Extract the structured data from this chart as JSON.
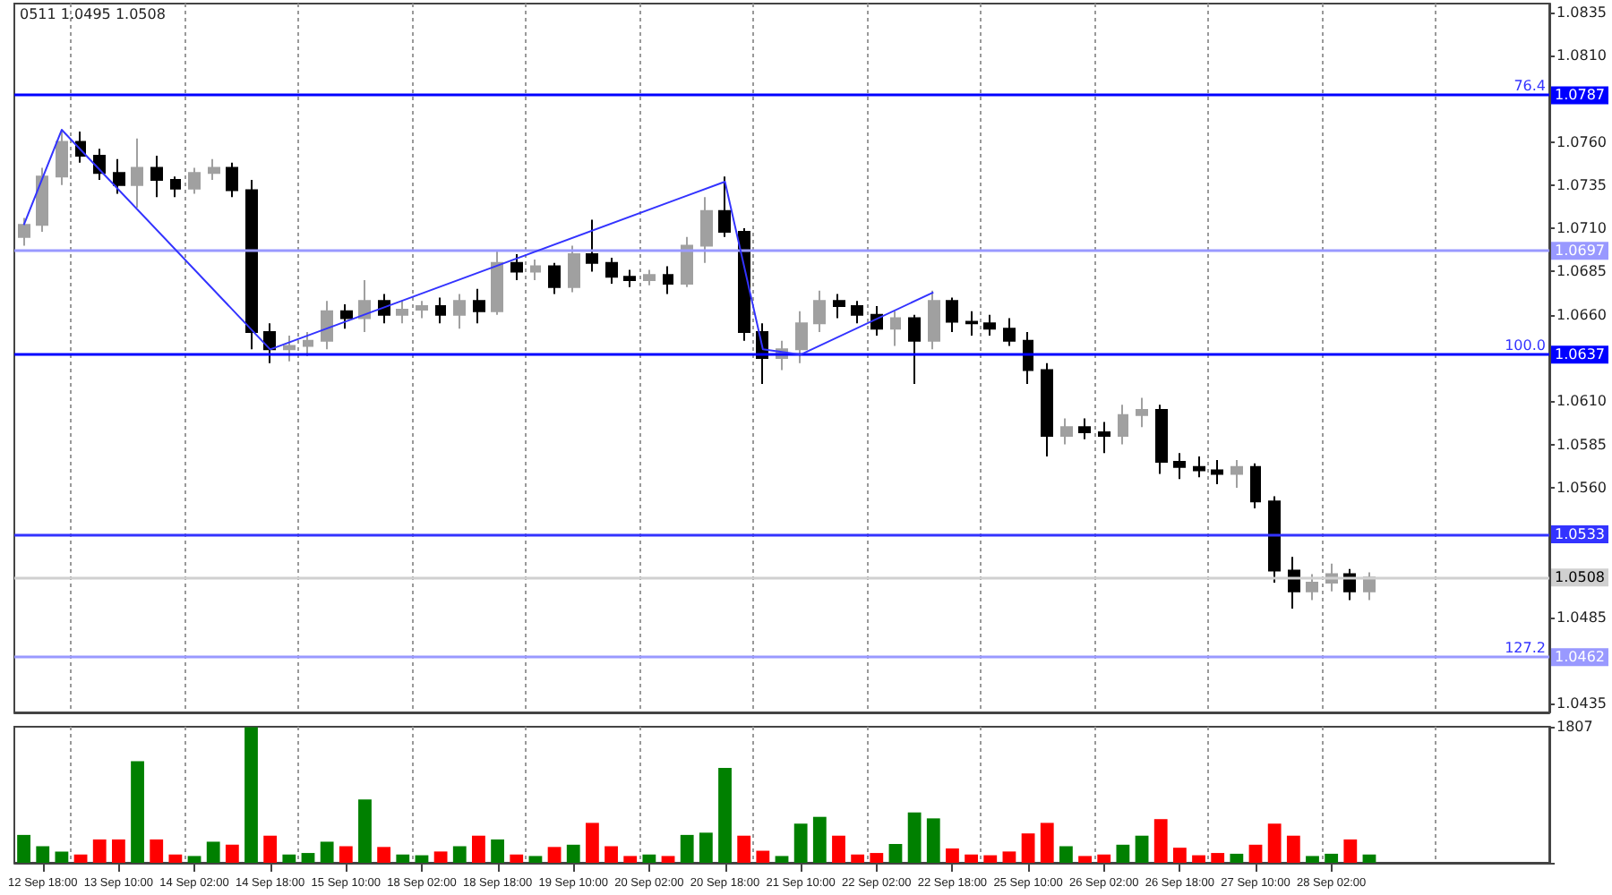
{
  "chart_data": [
    {
      "type": "candlestick",
      "annotations": [
        "0511 1.0495 1.0508",
        {
          "text": "76.4",
          "y": 1.0787
        },
        {
          "text": "100.0",
          "y": 1.0637
        },
        {
          "text": "127.2",
          "y": 1.0462
        }
      ],
      "categories": [
        null,
        null,
        null,
        null,
        null,
        null,
        null,
        null,
        null,
        null,
        null,
        null,
        null,
        null,
        null,
        null,
        null,
        null,
        null,
        null,
        null,
        null,
        null,
        null,
        null,
        null,
        null,
        null,
        null,
        null,
        null,
        null,
        null,
        null,
        null,
        null,
        null,
        null,
        null,
        null,
        null,
        null,
        null,
        null,
        null,
        null,
        null,
        null,
        null,
        null,
        null,
        null,
        null,
        null,
        null,
        null,
        null,
        null,
        null,
        null,
        null,
        null,
        null,
        null,
        null,
        null,
        null,
        null,
        null,
        null,
        null,
        null,
        null,
        null,
        null,
        null,
        null,
        null,
        null,
        null,
        null
      ],
      "ohlc": [
        [
          1.0705,
          1.0716,
          1.07,
          1.0712
        ],
        [
          1.0712,
          1.0745,
          1.0708,
          1.074
        ],
        [
          1.074,
          1.0767,
          1.0735,
          1.076
        ],
        [
          1.076,
          1.0766,
          1.0748,
          1.0752
        ],
        [
          1.0752,
          1.0756,
          1.0738,
          1.0742
        ],
        [
          1.0742,
          1.075,
          1.073,
          1.0735
        ],
        [
          1.0735,
          1.0762,
          1.0722,
          1.0745
        ],
        [
          1.0745,
          1.0752,
          1.0728,
          1.0738
        ],
        [
          1.0738,
          1.074,
          1.0728,
          1.0733
        ],
        [
          1.0733,
          1.0745,
          1.073,
          1.0742
        ],
        [
          1.0742,
          1.075,
          1.0738,
          1.0745
        ],
        [
          1.0745,
          1.0748,
          1.0728,
          1.0732
        ],
        [
          1.0732,
          1.0738,
          1.064,
          1.065
        ],
        [
          1.065,
          1.0655,
          1.0632,
          1.064
        ],
        [
          1.064,
          1.0648,
          1.0633,
          1.0642
        ],
        [
          1.0642,
          1.065,
          1.0636,
          1.0645
        ],
        [
          1.0645,
          1.0668,
          1.064,
          1.0662
        ],
        [
          1.0662,
          1.0666,
          1.0652,
          1.0658
        ],
        [
          1.0658,
          1.068,
          1.065,
          1.0668
        ],
        [
          1.0668,
          1.0672,
          1.0655,
          1.066
        ],
        [
          1.066,
          1.0668,
          1.0655,
          1.0663
        ],
        [
          1.0663,
          1.0668,
          1.0658,
          1.0665
        ],
        [
          1.0665,
          1.067,
          1.0655,
          1.066
        ],
        [
          1.066,
          1.0672,
          1.0652,
          1.0668
        ],
        [
          1.0668,
          1.0675,
          1.0655,
          1.0662
        ],
        [
          1.0662,
          1.0697,
          1.066,
          1.069
        ],
        [
          1.069,
          1.0695,
          1.068,
          1.0685
        ],
        [
          1.0685,
          1.0692,
          1.068,
          1.0688
        ],
        [
          1.0688,
          1.069,
          1.0672,
          1.0676
        ],
        [
          1.0676,
          1.07,
          1.0673,
          1.0695
        ],
        [
          1.0695,
          1.0715,
          1.0685,
          1.069
        ],
        [
          1.069,
          1.0693,
          1.0678,
          1.0682
        ],
        [
          1.0682,
          1.0686,
          1.0676,
          1.068
        ],
        [
          1.068,
          1.0686,
          1.0677,
          1.0683
        ],
        [
          1.0683,
          1.0688,
          1.0672,
          1.0678
        ],
        [
          1.0678,
          1.0705,
          1.0676,
          1.07
        ],
        [
          1.07,
          1.0728,
          1.069,
          1.072
        ],
        [
          1.072,
          1.074,
          1.0705,
          1.0708
        ],
        [
          1.0708,
          1.071,
          1.0645,
          1.065
        ],
        [
          1.065,
          1.0655,
          1.062,
          1.0635
        ],
        [
          1.0635,
          1.0645,
          1.0628,
          1.064
        ],
        [
          1.064,
          1.0662,
          1.0632,
          1.0655
        ],
        [
          1.0655,
          1.0674,
          1.065,
          1.0668
        ],
        [
          1.0668,
          1.0672,
          1.0658,
          1.0665
        ],
        [
          1.0665,
          1.0668,
          1.0655,
          1.066
        ],
        [
          1.066,
          1.0665,
          1.0648,
          1.0652
        ],
        [
          1.0652,
          1.0662,
          1.0642,
          1.0658
        ],
        [
          1.0658,
          1.066,
          1.062,
          1.0645
        ],
        [
          1.0645,
          1.0674,
          1.064,
          1.0668
        ],
        [
          1.0668,
          1.067,
          1.065,
          1.0656
        ],
        [
          1.0656,
          1.0662,
          1.0648,
          1.0655
        ],
        [
          1.0655,
          1.066,
          1.0648,
          1.0652
        ],
        [
          1.0652,
          1.0658,
          1.0642,
          1.0645
        ],
        [
          1.0645,
          1.065,
          1.062,
          1.0628
        ],
        [
          1.0628,
          1.0632,
          1.0578,
          1.059
        ],
        [
          1.059,
          1.06,
          1.0585,
          1.0595
        ],
        [
          1.0595,
          1.06,
          1.0588,
          1.0592
        ],
        [
          1.0592,
          1.0598,
          1.058,
          1.059
        ],
        [
          1.059,
          1.0608,
          1.0585,
          1.0602
        ],
        [
          1.0602,
          1.0612,
          1.0595,
          1.0605
        ],
        [
          1.0605,
          1.0608,
          1.0568,
          1.0575
        ],
        [
          1.0575,
          1.058,
          1.0565,
          1.0572
        ],
        [
          1.0572,
          1.0578,
          1.0566,
          1.057
        ],
        [
          1.057,
          1.0576,
          1.0562,
          1.0568
        ],
        [
          1.0568,
          1.0576,
          1.056,
          1.0572
        ],
        [
          1.0572,
          1.0574,
          1.0548,
          1.0552
        ],
        [
          1.0552,
          1.0555,
          1.0505,
          1.0512
        ],
        [
          1.0512,
          1.052,
          1.049,
          1.05
        ],
        [
          1.05,
          1.051,
          1.0495,
          1.0505
        ],
        [
          1.0505,
          1.0516,
          1.05,
          1.051
        ],
        [
          1.051,
          1.0513,
          1.0495,
          1.05
        ],
        [
          1.05,
          1.0511,
          1.0495,
          1.0508
        ],
        null,
        null,
        null,
        null,
        null,
        null,
        null,
        null,
        null
      ],
      "colors": [
        "#a0a0a0",
        "#a0a0a0",
        "#a0a0a0",
        "#000000",
        "#000000",
        "#000000",
        "#a0a0a0",
        "#000000",
        "#000000",
        "#a0a0a0",
        "#a0a0a0",
        "#000000",
        "#000000",
        "#000000",
        "#a0a0a0",
        "#a0a0a0",
        "#a0a0a0",
        "#000000",
        "#a0a0a0",
        "#000000",
        "#a0a0a0",
        "#a0a0a0",
        "#000000",
        "#a0a0a0",
        "#000000",
        "#a0a0a0",
        "#000000",
        "#a0a0a0",
        "#000000",
        "#a0a0a0",
        "#000000",
        "#000000",
        "#000000",
        "#a0a0a0",
        "#000000",
        "#a0a0a0",
        "#a0a0a0",
        "#000000",
        "#000000",
        "#000000",
        "#a0a0a0",
        "#a0a0a0",
        "#a0a0a0",
        "#000000",
        "#000000",
        "#000000",
        "#a0a0a0",
        "#000000",
        "#a0a0a0",
        "#000000",
        "#000000",
        "#000000",
        "#000000",
        "#000000",
        "#000000",
        "#a0a0a0",
        "#000000",
        "#000000",
        "#a0a0a0",
        "#a0a0a0",
        "#000000",
        "#000000",
        "#000000",
        "#000000",
        "#a0a0a0",
        "#000000",
        "#000000",
        "#000000",
        "#a0a0a0",
        "#a0a0a0",
        "#000000",
        "#a0a0a0",
        null,
        null,
        null,
        null,
        null,
        null,
        null,
        null,
        null
      ],
      "series": [
        {
          "type": "line",
          "color": "#3333ff",
          "values": [
            1.0712,
            null,
            1.0767,
            null,
            null,
            null,
            null,
            null,
            null,
            null,
            null,
            null,
            null,
            1.064,
            null,
            null,
            null,
            null,
            null,
            null,
            null,
            null,
            null,
            null,
            null,
            null,
            null,
            null,
            null,
            null,
            null,
            null,
            null,
            null,
            null,
            null,
            null,
            1.0737,
            null,
            1.064,
            null,
            1.0637,
            null,
            null,
            null,
            null,
            null,
            null,
            1.0673,
            null,
            null,
            null,
            null,
            null,
            null,
            null,
            null,
            null,
            null,
            null,
            null,
            null,
            null,
            null,
            null,
            null,
            null,
            null,
            null,
            null,
            null,
            null,
            null,
            null,
            null,
            null,
            null,
            null,
            null,
            null,
            null
          ]
        }
      ],
      "marker": "none",
      "ylim": [
        1.043,
        1.084
      ],
      "yticks": [
        1.0435,
        1.0485,
        {
          "value": 1.056,
          "label": "1.0560"
        },
        1.0585,
        {
          "value": 1.061,
          "label": "1.0610"
        },
        {
          "value": 1.066,
          "label": "1.0660"
        },
        1.0685,
        {
          "value": 1.071,
          "label": "1.0710"
        },
        1.0735,
        {
          "value": 1.076,
          "label": "1.0760"
        },
        {
          "value": 1.081,
          "label": "1.0810"
        },
        1.0835
      ],
      "ref_lines": [
        {
          "axis": "y",
          "value": 1.0787,
          "label": "1.0787",
          "color": "#0000ff"
        },
        {
          "axis": "y",
          "value": 1.0697,
          "label": "1.0697",
          "color": "#9999ff"
        },
        {
          "axis": "y",
          "value": 1.0637,
          "label": "1.0637",
          "color": "#0000ff"
        },
        {
          "axis": "y",
          "value": 1.0533,
          "label": "1.0533",
          "color": "#3333ff"
        },
        {
          "axis": "y",
          "value": 1.0508,
          "label": "1.0508",
          "color": "#d0d0d0"
        },
        {
          "axis": "y",
          "value": 1.0462,
          "label": "1.0462",
          "color": "#9999ff"
        }
      ],
      "grid": "x",
      "tick_labels": "y"
    },
    {
      "type": "bar",
      "categories": [
        null,
        "12 Sep 18:00",
        null,
        null,
        null,
        "13 Sep 10:00",
        null,
        null,
        null,
        "14 Sep 02:00",
        null,
        null,
        null,
        "14 Sep 18:00",
        null,
        null,
        null,
        "15 Sep 10:00",
        null,
        null,
        null,
        "18 Sep 02:00",
        null,
        null,
        null,
        "18 Sep 18:00",
        null,
        null,
        null,
        "19 Sep 10:00",
        null,
        null,
        null,
        "20 Sep 02:00",
        null,
        null,
        null,
        "20 Sep 18:00",
        null,
        null,
        null,
        "21 Sep 10:00",
        null,
        null,
        null,
        "22 Sep 02:00",
        null,
        null,
        null,
        "22 Sep 18:00",
        null,
        null,
        null,
        "25 Sep 10:00",
        null,
        null,
        null,
        "26 Sep 02:00",
        null,
        null,
        null,
        "26 Sep 18:00",
        null,
        null,
        null,
        "27 Sep 10:00",
        null,
        null,
        null,
        "28 Sep 02:00",
        null,
        null,
        null,
        null,
        null,
        null,
        null,
        null,
        null,
        null,
        null
      ],
      "values": [
        370,
        220,
        150,
        110,
        310,
        310,
        1350,
        310,
        110,
        90,
        280,
        240,
        1800,
        360,
        110,
        130,
        280,
        220,
        840,
        210,
        110,
        100,
        150,
        220,
        360,
        310,
        110,
        90,
        210,
        240,
        530,
        220,
        90,
        110,
        90,
        370,
        400,
        1260,
        360,
        160,
        90,
        520,
        610,
        360,
        110,
        130,
        250,
        670,
        590,
        190,
        110,
        100,
        150,
        390,
        530,
        220,
        90,
        110,
        240,
        360,
        580,
        200,
        100,
        130,
        120,
        240,
        520,
        360,
        90,
        120,
        310,
        110,
        null,
        null,
        null,
        null,
        null,
        null,
        null,
        null,
        null
      ],
      "colors": [
        "#008000",
        "#008000",
        "#008000",
        "#ff0000",
        "#ff0000",
        "#ff0000",
        "#008000",
        "#ff0000",
        "#ff0000",
        "#008000",
        "#008000",
        "#ff0000",
        "#008000",
        "#ff0000",
        "#008000",
        "#008000",
        "#008000",
        "#ff0000",
        "#008000",
        "#ff0000",
        "#008000",
        "#008000",
        "#ff0000",
        "#008000",
        "#ff0000",
        "#008000",
        "#ff0000",
        "#008000",
        "#ff0000",
        "#008000",
        "#ff0000",
        "#ff0000",
        "#ff0000",
        "#008000",
        "#ff0000",
        "#008000",
        "#008000",
        "#008000",
        "#ff0000",
        "#ff0000",
        "#008000",
        "#008000",
        "#008000",
        "#ff0000",
        "#ff0000",
        "#ff0000",
        "#008000",
        "#008000",
        "#008000",
        "#ff0000",
        "#ff0000",
        "#ff0000",
        "#ff0000",
        "#ff0000",
        "#ff0000",
        "#008000",
        "#ff0000",
        "#ff0000",
        "#008000",
        "#008000",
        "#ff0000",
        "#ff0000",
        "#ff0000",
        "#ff0000",
        "#008000",
        "#ff0000",
        "#ff0000",
        "#ff0000",
        "#008000",
        "#008000",
        "#ff0000",
        "#008000",
        null,
        null,
        null,
        null,
        null,
        null,
        null,
        null,
        null
      ],
      "ylim": [
        0,
        1807
      ],
      "yticks": [
        0,
        1807
      ],
      "grid": "x"
    }
  ]
}
